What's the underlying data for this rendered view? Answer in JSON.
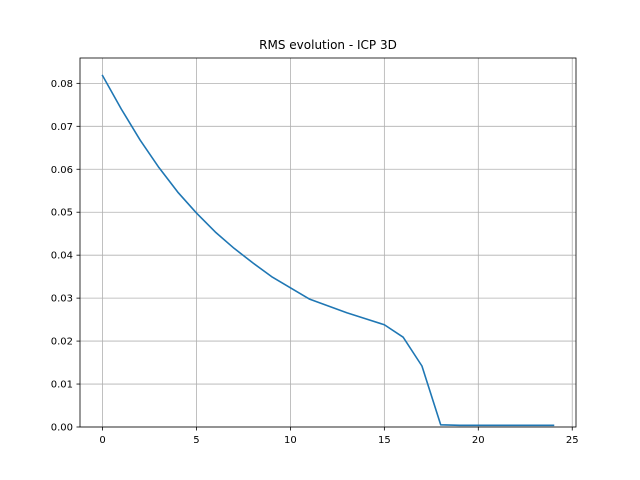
{
  "chart_data": {
    "type": "line",
    "title": "RMS evolution - ICP 3D",
    "xlabel": "",
    "ylabel": "",
    "xlim": [
      -1.2,
      25.2
    ],
    "ylim": [
      0,
      0.0859
    ],
    "xticks": [
      0,
      5,
      10,
      15,
      20,
      25
    ],
    "xtick_labels": [
      "0",
      "5",
      "10",
      "15",
      "20",
      "25"
    ],
    "yticks": [
      0,
      0.01,
      0.02,
      0.03,
      0.04,
      0.05,
      0.06,
      0.07,
      0.08
    ],
    "ytick_labels": [
      "0.00",
      "0.01",
      "0.02",
      "0.03",
      "0.04",
      "0.05",
      "0.06",
      "0.07",
      "0.08"
    ],
    "grid": true,
    "series": [
      {
        "color": "#1f77b4",
        "x": [
          0,
          1,
          2,
          3,
          4,
          5,
          6,
          7,
          8,
          9,
          10,
          11,
          12,
          13,
          14,
          15,
          16,
          17,
          18,
          19,
          20,
          21,
          22,
          23,
          24
        ],
        "values": [
          0.0818,
          0.074,
          0.0668,
          0.0604,
          0.0547,
          0.0498,
          0.0454,
          0.0416,
          0.0382,
          0.035,
          0.0324,
          0.0298,
          0.0282,
          0.0266,
          0.0252,
          0.0238,
          0.0209,
          0.0142,
          0.0005,
          0.0004,
          0.0004,
          0.0004,
          0.0004,
          0.0004,
          0.0004
        ]
      }
    ]
  }
}
